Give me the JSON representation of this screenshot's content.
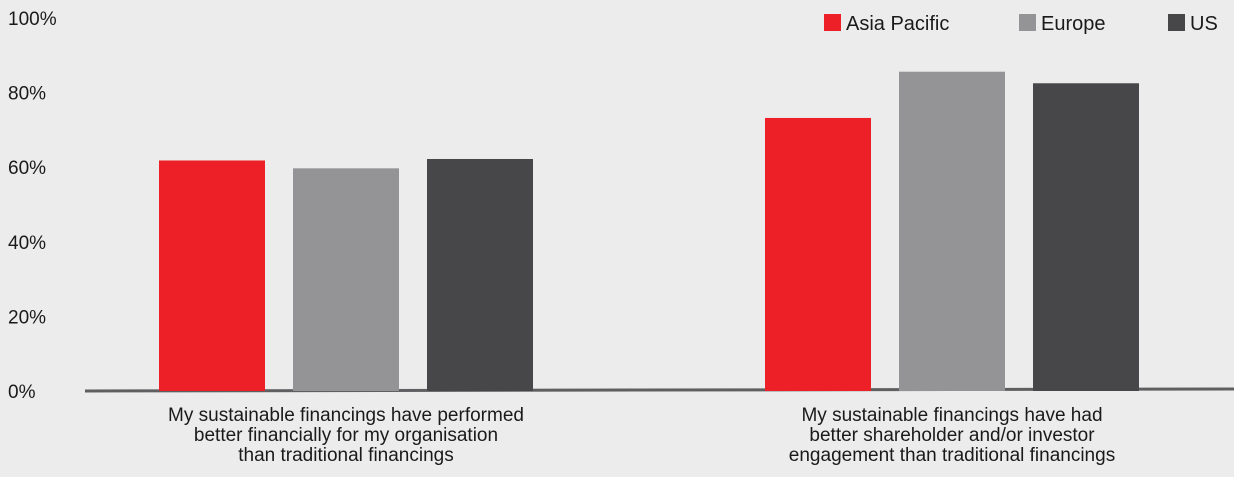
{
  "chart_data": {
    "type": "bar",
    "title": "",
    "xlabel": "",
    "ylabel": "",
    "ylim": [
      0,
      100
    ],
    "yticks": [
      "0%",
      "20%",
      "40%",
      "60%",
      "80%",
      "100%"
    ],
    "ytick_values": [
      0,
      20,
      40,
      60,
      80,
      100
    ],
    "categories": [
      [
        "My sustainable financings have performed",
        "better financially for my organisation",
        "than traditional financings"
      ],
      [
        "My sustainable financings have had",
        "better shareholder and/or investor",
        "engagement than traditional financings"
      ]
    ],
    "series": [
      {
        "name": "Asia Pacific",
        "color": "#ed2027",
        "values": [
          61.8,
          73.2
        ]
      },
      {
        "name": "Europe",
        "color": "#949496",
        "values": [
          59.7,
          85.6
        ]
      },
      {
        "name": "US",
        "color": "#474648",
        "values": [
          62.2,
          82.5
        ]
      }
    ],
    "legend_position": "top-right",
    "grid": false
  }
}
